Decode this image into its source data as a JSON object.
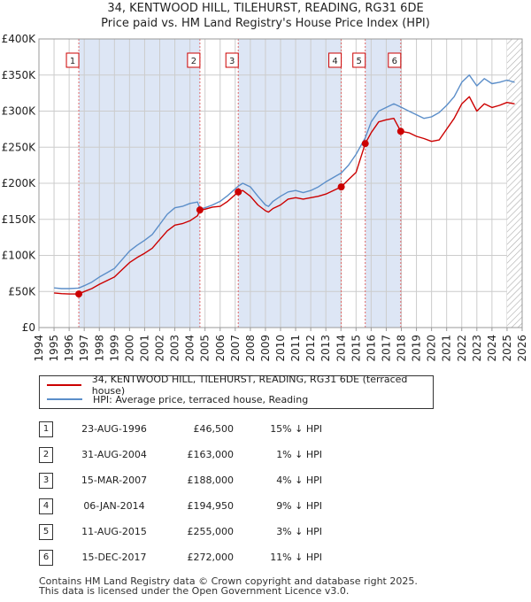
{
  "header": {
    "title": "34, KENTWOOD HILL, TILEHURST, READING, RG31 6DE",
    "subtitle": "Price paid vs. HM Land Registry's House Price Index (HPI)"
  },
  "chart_data": {
    "type": "line",
    "title": "34, KENTWOOD HILL, TILEHURST, READING, RG31 6DE",
    "subtitle": "Price paid vs. HM Land Registry's House Price Index (HPI)",
    "xlabel": "",
    "ylabel": "",
    "xlim": [
      1994,
      2026
    ],
    "ylim": [
      0,
      400000
    ],
    "y_ticks": [
      0,
      50000,
      100000,
      150000,
      200000,
      250000,
      300000,
      350000,
      400000
    ],
    "y_tick_labels": [
      "£0",
      "£50K",
      "£100K",
      "£150K",
      "£200K",
      "£250K",
      "£300K",
      "£350K",
      "£400K"
    ],
    "x_ticks": [
      1994,
      1995,
      1996,
      1997,
      1998,
      1999,
      2000,
      2001,
      2002,
      2003,
      2004,
      2005,
      2006,
      2007,
      2008,
      2009,
      2010,
      2011,
      2012,
      2013,
      2014,
      2015,
      2016,
      2017,
      2018,
      2019,
      2020,
      2021,
      2022,
      2023,
      2024,
      2025,
      2026
    ],
    "grid": true,
    "legend_position": "below",
    "colors": {
      "property": "#cc0000",
      "hpi": "#5b8ec9",
      "band": "#dde6f5",
      "sale_line": "#e06666",
      "grid": "#cccccc"
    },
    "series": [
      {
        "name": "34, KENTWOOD HILL, TILEHURST, READING, RG31 6DE (terraced house)",
        "color": "#cc0000",
        "x": [
          1995.0,
          1995.5,
          1996.0,
          1996.64,
          1997.0,
          1997.5,
          1998.0,
          1998.5,
          1999.0,
          1999.5,
          2000.0,
          2000.5,
          2001.0,
          2001.5,
          2002.0,
          2002.5,
          2003.0,
          2003.5,
          2004.0,
          2004.5,
          2004.66,
          2005.0,
          2005.5,
          2006.0,
          2006.5,
          2007.2,
          2007.5,
          2008.0,
          2008.5,
          2009.0,
          2009.2,
          2009.5,
          2010.0,
          2010.5,
          2011.0,
          2011.5,
          2012.0,
          2012.5,
          2013.0,
          2013.5,
          2014.02,
          2014.5,
          2015.0,
          2015.61,
          2016.0,
          2016.5,
          2017.0,
          2017.5,
          2017.96,
          2018.5,
          2019.0,
          2019.5,
          2020.0,
          2020.5,
          2021.0,
          2021.5,
          2022.0,
          2022.5,
          2023.0,
          2023.5,
          2024.0,
          2024.5,
          2025.0,
          2025.5
        ],
        "values": [
          48000,
          47000,
          46500,
          46500,
          50000,
          54000,
          60000,
          65000,
          70000,
          80000,
          90000,
          97000,
          103000,
          110000,
          122000,
          134000,
          142000,
          144000,
          148000,
          155000,
          163000,
          164000,
          167000,
          168000,
          175000,
          188000,
          190000,
          182000,
          170000,
          162000,
          160000,
          165000,
          170000,
          178000,
          180000,
          178000,
          180000,
          182000,
          185000,
          190000,
          194950,
          205000,
          215000,
          255000,
          270000,
          285000,
          288000,
          290000,
          272000,
          270000,
          265000,
          262000,
          258000,
          260000,
          275000,
          290000,
          310000,
          320000,
          300000,
          310000,
          305000,
          308000,
          312000,
          310000
        ]
      },
      {
        "name": "HPI: Average price, terraced house, Reading",
        "color": "#5b8ec9",
        "x": [
          1995.0,
          1995.5,
          1996.0,
          1996.64,
          1997.0,
          1997.5,
          1998.0,
          1998.5,
          1999.0,
          1999.5,
          2000.0,
          2000.5,
          2001.0,
          2001.5,
          2002.0,
          2002.5,
          2003.0,
          2003.5,
          2004.0,
          2004.5,
          2004.66,
          2005.0,
          2005.5,
          2006.0,
          2006.5,
          2007.2,
          2007.5,
          2008.0,
          2008.5,
          2009.0,
          2009.2,
          2009.5,
          2010.0,
          2010.5,
          2011.0,
          2011.5,
          2012.0,
          2012.5,
          2013.0,
          2013.5,
          2014.02,
          2014.5,
          2015.0,
          2015.61,
          2016.0,
          2016.5,
          2017.0,
          2017.5,
          2017.96,
          2018.5,
          2019.0,
          2019.5,
          2020.0,
          2020.5,
          2021.0,
          2021.5,
          2022.0,
          2022.5,
          2023.0,
          2023.5,
          2024.0,
          2024.5,
          2025.0,
          2025.5
        ],
        "values": [
          55000,
          54000,
          54000,
          54700,
          58000,
          63000,
          70000,
          76000,
          82000,
          94000,
          106000,
          114000,
          121000,
          129000,
          143000,
          157000,
          166000,
          168000,
          172000,
          174000,
          164600,
          166000,
          170000,
          175000,
          183000,
          196000,
          200000,
          195000,
          182000,
          170000,
          168000,
          175000,
          182000,
          188000,
          190000,
          187000,
          190000,
          195000,
          202000,
          208000,
          214200,
          225000,
          240000,
          263000,
          285000,
          300000,
          305000,
          310000,
          305600,
          300000,
          295000,
          290000,
          292000,
          298000,
          308000,
          320000,
          340000,
          350000,
          335000,
          345000,
          338000,
          340000,
          343000,
          340000
        ]
      }
    ],
    "sales": [
      {
        "label": "1",
        "x": 1996.64,
        "value": 46500
      },
      {
        "label": "2",
        "x": 2004.66,
        "value": 163000
      },
      {
        "label": "3",
        "x": 2007.2,
        "value": 188000
      },
      {
        "label": "4",
        "x": 2014.02,
        "value": 194950
      },
      {
        "label": "5",
        "x": 2015.61,
        "value": 255000
      },
      {
        "label": "6",
        "x": 2017.96,
        "value": 272000
      }
    ],
    "shaded_bands": [
      [
        1996.64,
        2004.66
      ],
      [
        2007.2,
        2014.02
      ],
      [
        2015.61,
        2017.96
      ]
    ],
    "hatched_region": [
      2025.0,
      2026.0
    ]
  },
  "legend": {
    "items": [
      {
        "label": "34, KENTWOOD HILL, TILEHURST, READING, RG31 6DE (terraced house)",
        "color": "#cc0000"
      },
      {
        "label": "HPI: Average price, terraced house, Reading",
        "color": "#5b8ec9"
      }
    ]
  },
  "sales_table": {
    "rows": [
      {
        "num": "1",
        "date": "23-AUG-1996",
        "price": "£46,500",
        "hpi": "15% ↓ HPI"
      },
      {
        "num": "2",
        "date": "31-AUG-2004",
        "price": "£163,000",
        "hpi": "1% ↓ HPI"
      },
      {
        "num": "3",
        "date": "15-MAR-2007",
        "price": "£188,000",
        "hpi": "4% ↓ HPI"
      },
      {
        "num": "4",
        "date": "06-JAN-2014",
        "price": "£194,950",
        "hpi": "9% ↓ HPI"
      },
      {
        "num": "5",
        "date": "11-AUG-2015",
        "price": "£255,000",
        "hpi": "3% ↓ HPI"
      },
      {
        "num": "6",
        "date": "15-DEC-2017",
        "price": "£272,000",
        "hpi": "11% ↓ HPI"
      }
    ]
  },
  "footer": {
    "line1": "Contains HM Land Registry data © Crown copyright and database right 2025.",
    "line2": "This data is licensed under the Open Government Licence v3.0."
  }
}
